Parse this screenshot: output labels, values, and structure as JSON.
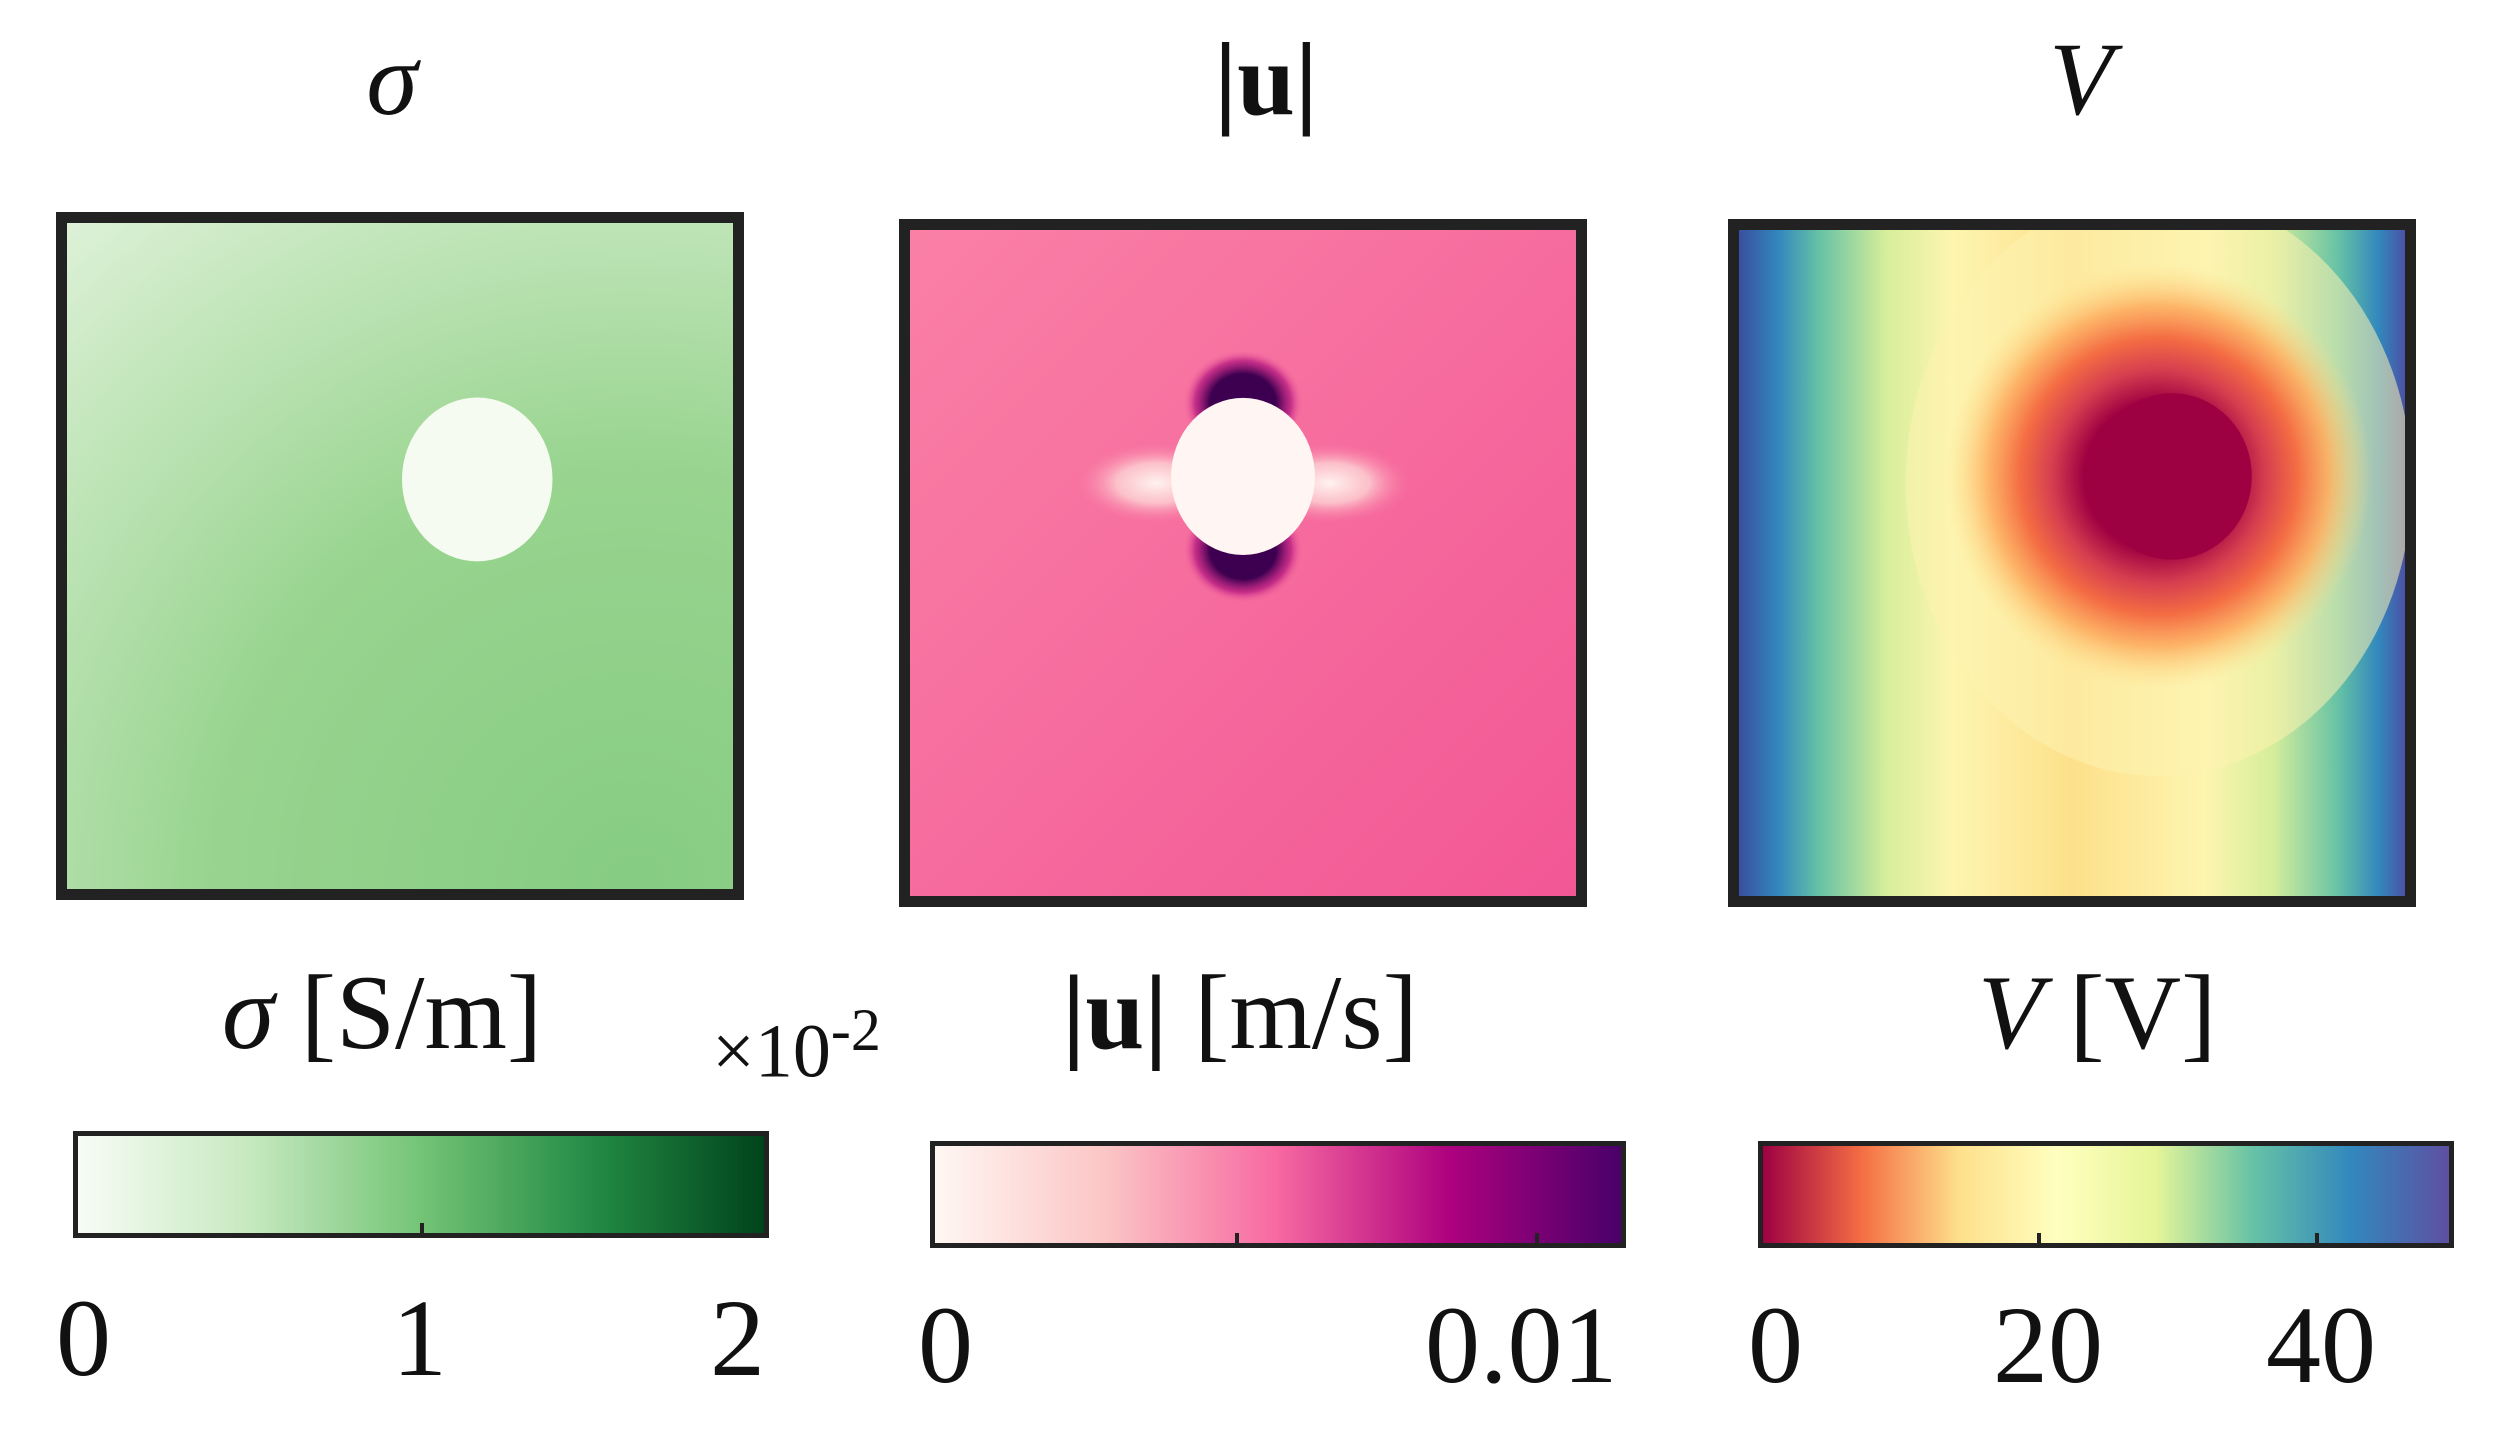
{
  "panels": [
    {
      "id": "sigma",
      "title": "σ",
      "colorbar": {
        "label_symbol": "σ",
        "label_unit": "[S/m]",
        "scale_factor": "×10",
        "scale_exponent": "-2",
        "ticks": [
          "0",
          "1",
          "2"
        ],
        "colors": [
          "#f7fcf5",
          "#c7e9c0",
          "#74c476",
          "#238b45",
          "#00441b"
        ]
      }
    },
    {
      "id": "velocity",
      "title": "|u|",
      "colorbar": {
        "label_symbol": "|u|",
        "label_unit": "[m/s]",
        "ticks": [
          "0",
          "0.01"
        ],
        "colors": [
          "#fff7f3",
          "#fbc5c5",
          "#f768a1",
          "#ae017e",
          "#49006a"
        ]
      }
    },
    {
      "id": "voltage",
      "title": "V",
      "colorbar": {
        "label_symbol": "V",
        "label_unit": "[V]",
        "ticks": [
          "0",
          "20",
          "40"
        ],
        "colors": [
          "#9e0142",
          "#f46d43",
          "#fee08b",
          "#ffffbf",
          "#e6f598",
          "#66c2a5",
          "#3288bd",
          "#5e4fa2"
        ]
      }
    }
  ]
}
